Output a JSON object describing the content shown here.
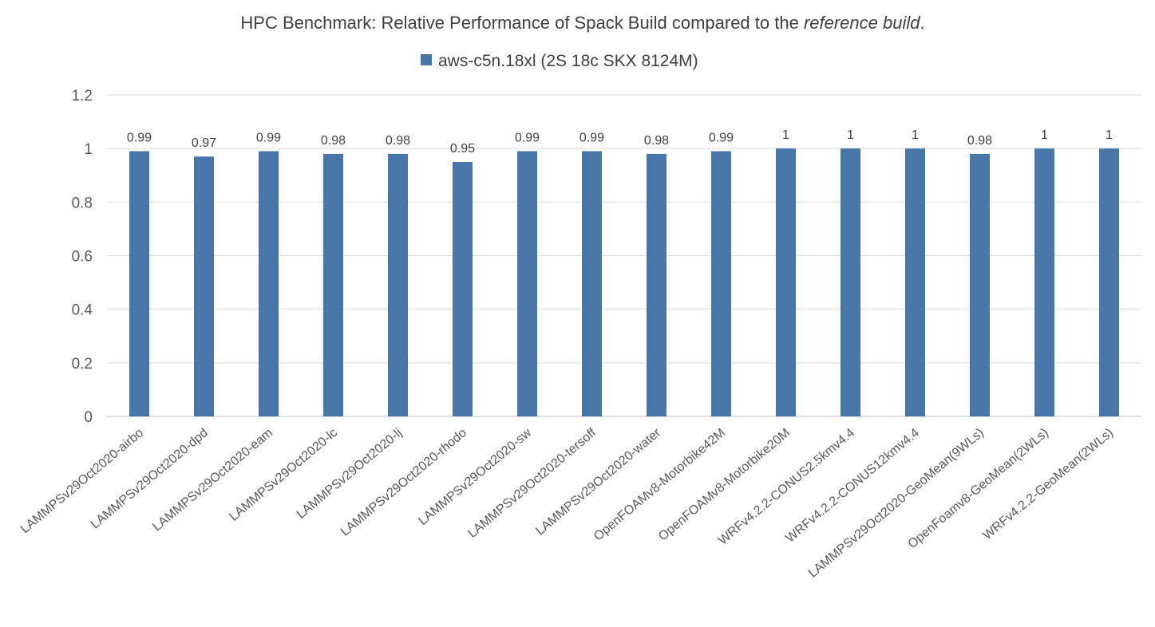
{
  "chart_data": {
    "type": "bar",
    "title": "HPC Benchmark: Relative Performance of Spack Build compared to the ",
    "title_emphasis": "reference build",
    "title_suffix": ".",
    "xlabel": "",
    "ylabel": "",
    "ylim": [
      0,
      1.2
    ],
    "yticks": [
      "0",
      "0.2",
      "0.4",
      "0.6",
      "0.8",
      "1",
      "1.2"
    ],
    "grid": true,
    "legend_position": "top",
    "categories": [
      "LAMMPSv29Oct2020-airbo",
      "LAMMPSv29Oct2020-dpd",
      "LAMMPSv29Oct2020-eam",
      "LAMMPSv29Oct2020-lc",
      "LAMMPSv29Oct2020-lj",
      "LAMMPSv29Oct2020-rhodo",
      "LAMMPSv29Oct2020-sw",
      "LAMMPSv29Oct2020-tersoff",
      "LAMMPSv29Oct2020-water",
      "OpenFOAMv8-Motorbike42M",
      "OpenFOAMv8-Motorbike20M",
      "WRFv4.2.2-CONUS2.5kmv4.4",
      "WRFv4.2.2-CONUS12kmv4.4",
      "LAMMPSv29Oct2020-GeoMean(9WLs)",
      "OpenFoamv8-GeoMean(2WLs)",
      "WRFv4.2.2-GeoMean(2WLs)"
    ],
    "series": [
      {
        "name": "aws-c5n.18xl (2S 18c SKX 8124M)",
        "color": "#4677a8",
        "values": [
          0.99,
          0.97,
          0.99,
          0.98,
          0.98,
          0.95,
          0.99,
          0.99,
          0.98,
          0.99,
          1,
          1,
          1,
          0.98,
          1,
          1
        ],
        "labels": [
          "0.99",
          "0.97",
          "0.99",
          "0.98",
          "0.98",
          "0.95",
          "0.99",
          "0.99",
          "0.98",
          "0.99",
          "1",
          "1",
          "1",
          "0.98",
          "1",
          "1"
        ]
      }
    ]
  }
}
